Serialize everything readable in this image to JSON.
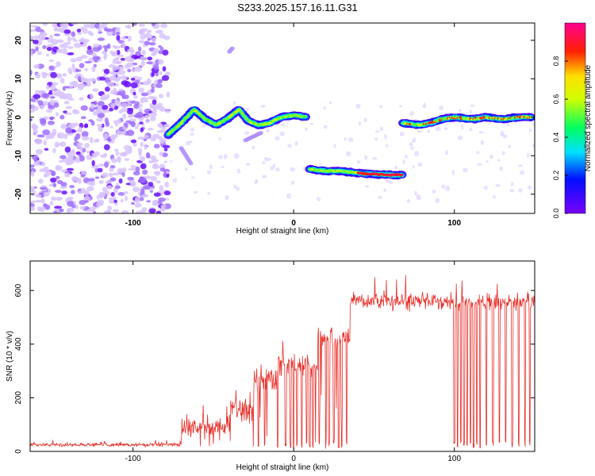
{
  "title": "S233.2025.157.16.11.G31",
  "colors": {
    "snr_line": "#e8302a",
    "axis": "#000000"
  },
  "chart_data": [
    {
      "type": "heatmap",
      "name": "spectrogram",
      "xlabel": "Height of straight line (km)",
      "ylabel": "Frequency (Hz)",
      "xlim": [
        -164,
        150
      ],
      "ylim": [
        -25,
        24.5
      ],
      "xticks": [
        -100,
        0,
        100
      ],
      "yticks": [
        -20,
        -10,
        0,
        10,
        20
      ],
      "colorbar": {
        "label": "Normalized spectral amplitude",
        "range": [
          0,
          1
        ],
        "ticks": [
          0.0,
          0.2,
          0.4,
          0.6,
          0.8
        ],
        "colormap": "rainbow (purple→blue→cyan→green→yellow→red→magenta)"
      },
      "noise_region": {
        "x": [
          -164,
          -78
        ],
        "y": [
          -25,
          24.5
        ]
      },
      "tracks": [
        {
          "x": [
            -78,
            -70,
            -62,
            -55,
            -48,
            -40,
            -34,
            -28,
            -22,
            -15,
            -8,
            0,
            8
          ],
          "y": [
            -4.5,
            -1.5,
            2,
            -0.5,
            -2,
            0,
            2,
            -1,
            -2,
            -1.5,
            0,
            0.5,
            0
          ]
        },
        {
          "x": [
            10,
            20,
            30,
            40,
            50,
            60,
            68
          ],
          "y": [
            -13.5,
            -14,
            -14,
            -14.5,
            -14.8,
            -15,
            -15
          ]
        },
        {
          "x": [
            68,
            78,
            85,
            92,
            100,
            110,
            120,
            130,
            140,
            148
          ],
          "y": [
            -1.5,
            -2,
            -1.5,
            -0.5,
            0,
            -0.5,
            0,
            -0.5,
            0,
            0
          ]
        }
      ]
    },
    {
      "type": "line",
      "name": "snr",
      "xlabel": "Height of straight line (km)",
      "ylabel": "SNR (10 * v/v)",
      "xlim": [
        -164,
        150
      ],
      "ylim": [
        0,
        710
      ],
      "xticks": [
        -100,
        0,
        100
      ],
      "yticks": [
        0,
        200,
        400,
        600
      ],
      "segments": [
        {
          "x": [
            -164,
            -70
          ],
          "level": 25,
          "noise": 10
        },
        {
          "x": [
            -70,
            -40
          ],
          "level": 90,
          "noise": 60
        },
        {
          "x": [
            -40,
            -25
          ],
          "level": 160,
          "noise": 80
        },
        {
          "x": [
            -25,
            -10
          ],
          "level": 270,
          "noise": 70
        },
        {
          "x": [
            -10,
            15
          ],
          "level": 320,
          "noise": 70
        },
        {
          "x": [
            15,
            35
          ],
          "level": 420,
          "noise": 60
        },
        {
          "x": [
            35,
            150
          ],
          "level": 560,
          "noise": 45
        }
      ],
      "dropouts_x": [
        -22,
        -18,
        -10,
        -5,
        -2,
        0,
        2,
        5,
        8,
        10,
        12,
        16,
        20,
        22,
        25,
        28,
        30,
        33,
        100,
        102,
        104,
        106,
        108,
        110,
        112,
        114,
        116,
        120,
        124,
        128,
        132,
        136,
        140,
        144,
        147
      ]
    }
  ]
}
